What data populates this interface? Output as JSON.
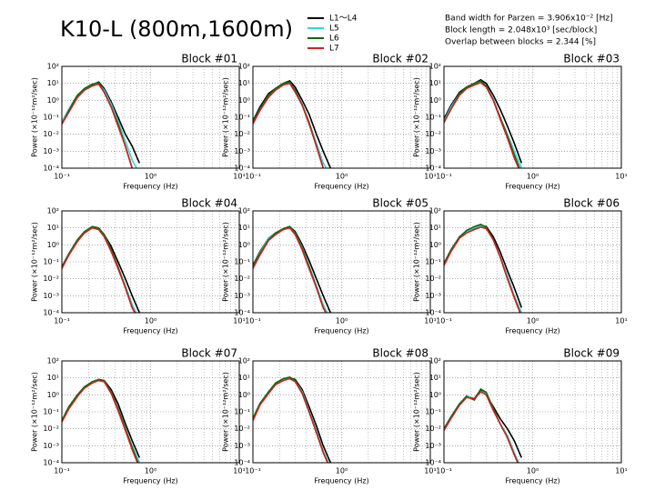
{
  "title": "K10-L (800m,1600m)",
  "notes": [
    "Band width for Parzen = 3.906x10⁻² [Hz]",
    "Block length = 2.048x10³ [sec/block]",
    "Overlap between blocks = 2.344 [%]"
  ],
  "legend": [
    {
      "name": "L1～L4",
      "color": "#000000"
    },
    {
      "name": "L5",
      "color": "#33d6d6"
    },
    {
      "name": "L6",
      "color": "#0a6b0a"
    },
    {
      "name": "L7",
      "color": "#cc2222"
    }
  ],
  "axes": {
    "xlabel": "Frequency (Hz)",
    "ylabel": "Power (×10⁻¹²m²/sec)",
    "xscale": "log",
    "yscale": "log",
    "grid": true,
    "xlim": [
      0.1,
      10
    ],
    "ylim": [
      0.0001,
      100
    ],
    "xticks": [
      {
        "value": 0.1,
        "label": "10⁻¹"
      },
      {
        "value": 1,
        "label": "10⁰"
      },
      {
        "value": 10,
        "label": "10¹"
      }
    ],
    "yticks": [
      {
        "value": 0.0001,
        "label": "10⁻⁴"
      },
      {
        "value": 0.001,
        "label": "10⁻³"
      },
      {
        "value": 0.01,
        "label": "10⁻²"
      },
      {
        "value": 0.1,
        "label": "10⁻¹"
      },
      {
        "value": 1,
        "label": "10⁰"
      },
      {
        "value": 10,
        "label": "10¹"
      },
      {
        "value": 100,
        "label": "10²"
      }
    ]
  },
  "chart_data": [
    {
      "type": "line",
      "title": "Block #01",
      "x": [
        0.1,
        0.12,
        0.15,
        0.18,
        0.22,
        0.26,
        0.3,
        0.36,
        0.43,
        0.52,
        0.62,
        0.75
      ],
      "series": [
        {
          "values": [
            0.05,
            0.3,
            2,
            4,
            8,
            12,
            5,
            0.8,
            0.1,
            0.01,
            0.002,
            0.0002
          ]
        },
        {
          "values": [
            0.05,
            0.3,
            2,
            4,
            9,
            10,
            4,
            0.6,
            0.06,
            0.004,
            0.0003,
            5e-05
          ]
        },
        {
          "values": [
            0.04,
            0.25,
            2,
            5,
            9,
            11,
            3,
            0.4,
            0.04,
            0.002,
            0.0001,
            3e-05
          ]
        },
        {
          "values": [
            0.04,
            0.2,
            1.5,
            4,
            7,
            9,
            3,
            0.4,
            0.03,
            0.002,
            0.0001,
            3e-05
          ]
        }
      ]
    },
    {
      "type": "line",
      "title": "Block #02",
      "x": [
        0.1,
        0.12,
        0.15,
        0.18,
        0.22,
        0.26,
        0.3,
        0.36,
        0.43,
        0.52,
        0.62,
        0.75
      ],
      "series": [
        {
          "values": [
            0.06,
            0.4,
            2.5,
            5,
            10,
            14,
            6,
            1,
            0.15,
            0.01,
            0.001,
            0.0001
          ]
        },
        {
          "values": [
            0.05,
            0.3,
            2,
            4,
            9,
            11,
            4,
            0.6,
            0.05,
            0.003,
            0.0002,
            4e-05
          ]
        },
        {
          "values": [
            0.05,
            0.3,
            2,
            5,
            10,
            12,
            4,
            0.5,
            0.05,
            0.002,
            0.0001,
            3e-05
          ]
        },
        {
          "values": [
            0.04,
            0.25,
            1.5,
            4,
            8,
            10,
            3,
            0.5,
            0.04,
            0.002,
            0.0001,
            3e-05
          ]
        }
      ]
    },
    {
      "type": "line",
      "title": "Block #03",
      "x": [
        0.1,
        0.12,
        0.15,
        0.18,
        0.22,
        0.26,
        0.3,
        0.36,
        0.43,
        0.52,
        0.62,
        0.75
      ],
      "series": [
        {
          "values": [
            0.08,
            0.5,
            3,
            6,
            10,
            16,
            10,
            2,
            0.3,
            0.03,
            0.003,
            0.0002
          ]
        },
        {
          "values": [
            0.06,
            0.4,
            2.5,
            5,
            9,
            13,
            7,
            1.2,
            0.1,
            0.01,
            0.001,
            0.0001
          ]
        },
        {
          "values": [
            0.05,
            0.3,
            2.5,
            6,
            10,
            14,
            7,
            1,
            0.1,
            0.008,
            0.0006,
            5e-05
          ]
        },
        {
          "values": [
            0.05,
            0.3,
            2,
            5,
            8,
            11,
            6,
            1,
            0.08,
            0.006,
            0.0004,
            4e-05
          ]
        }
      ]
    },
    {
      "type": "line",
      "title": "Block #04",
      "x": [
        0.1,
        0.12,
        0.15,
        0.18,
        0.22,
        0.26,
        0.3,
        0.36,
        0.43,
        0.52,
        0.62,
        0.75
      ],
      "series": [
        {
          "values": [
            0.05,
            0.3,
            2,
            6,
            11,
            9,
            4,
            0.8,
            0.1,
            0.01,
            0.001,
            0.0001
          ]
        },
        {
          "values": [
            0.05,
            0.3,
            2,
            6,
            12,
            10,
            4,
            0.5,
            0.05,
            0.004,
            0.0003,
            4e-05
          ]
        },
        {
          "values": [
            0.05,
            0.3,
            2,
            6,
            12,
            10,
            4,
            0.5,
            0.05,
            0.003,
            0.0002,
            3e-05
          ]
        },
        {
          "values": [
            0.04,
            0.25,
            1.6,
            5,
            10,
            8,
            3,
            0.4,
            0.04,
            0.003,
            0.0002,
            3e-05
          ]
        }
      ]
    },
    {
      "type": "line",
      "title": "Block #05",
      "x": [
        0.1,
        0.12,
        0.15,
        0.18,
        0.22,
        0.26,
        0.3,
        0.36,
        0.43,
        0.52,
        0.62,
        0.75
      ],
      "series": [
        {
          "values": [
            0.06,
            0.4,
            2.5,
            5,
            8,
            12,
            6,
            1,
            0.12,
            0.01,
            0.001,
            0.0001
          ]
        },
        {
          "values": [
            0.05,
            0.35,
            2.5,
            5,
            9,
            12,
            5,
            0.7,
            0.06,
            0.004,
            0.0003,
            4e-05
          ]
        },
        {
          "values": [
            0.05,
            0.3,
            2,
            5,
            9,
            12,
            5,
            0.6,
            0.05,
            0.003,
            0.0002,
            3e-05
          ]
        },
        {
          "values": [
            0.04,
            0.25,
            1.8,
            4,
            8,
            10,
            4,
            0.5,
            0.04,
            0.003,
            0.0002,
            3e-05
          ]
        }
      ]
    },
    {
      "type": "line",
      "title": "Block #06",
      "x": [
        0.1,
        0.12,
        0.15,
        0.18,
        0.22,
        0.26,
        0.3,
        0.36,
        0.43,
        0.52,
        0.62,
        0.75
      ],
      "series": [
        {
          "values": [
            0.08,
            0.5,
            3,
            6,
            9,
            14,
            12,
            3,
            0.4,
            0.03,
            0.003,
            0.0002
          ]
        },
        {
          "values": [
            0.07,
            0.45,
            3,
            6,
            10,
            13,
            10,
            2,
            0.2,
            0.015,
            0.001,
            0.0001
          ]
        },
        {
          "values": [
            0.07,
            0.45,
            3,
            7,
            12,
            16,
            11,
            2,
            0.2,
            0.01,
            0.0008,
            6e-05
          ]
        },
        {
          "values": [
            0.06,
            0.4,
            2.5,
            5,
            8,
            11,
            9,
            2,
            0.2,
            0.01,
            0.0008,
            6e-05
          ]
        }
      ]
    },
    {
      "type": "line",
      "title": "Block #07",
      "x": [
        0.1,
        0.12,
        0.15,
        0.18,
        0.22,
        0.26,
        0.3,
        0.36,
        0.43,
        0.52,
        0.62,
        0.75
      ],
      "series": [
        {
          "values": [
            0.03,
            0.2,
            1,
            3,
            5,
            8,
            7,
            2,
            0.3,
            0.02,
            0.002,
            0.0002
          ]
        },
        {
          "values": [
            0.03,
            0.2,
            1,
            3,
            5,
            7,
            6,
            1.5,
            0.15,
            0.01,
            0.001,
            0.0001
          ]
        },
        {
          "values": [
            0.03,
            0.2,
            1,
            3,
            6,
            8,
            7,
            1.5,
            0.15,
            0.01,
            0.0008,
            6e-05
          ]
        },
        {
          "values": [
            0.025,
            0.15,
            0.8,
            2.5,
            5,
            7,
            6,
            1.2,
            0.12,
            0.008,
            0.0006,
            5e-05
          ]
        }
      ]
    },
    {
      "type": "line",
      "title": "Block #08",
      "x": [
        0.1,
        0.12,
        0.15,
        0.18,
        0.22,
        0.26,
        0.3,
        0.36,
        0.43,
        0.52,
        0.62,
        0.75
      ],
      "series": [
        {
          "values": [
            0.04,
            0.3,
            1.5,
            4,
            7,
            10,
            8,
            2,
            0.2,
            0.015,
            0.001,
            0.0001
          ]
        },
        {
          "values": [
            0.04,
            0.3,
            1.5,
            4,
            8,
            10,
            7,
            1.5,
            0.12,
            0.008,
            0.0005,
            5e-05
          ]
        },
        {
          "values": [
            0.04,
            0.3,
            1.5,
            5,
            9,
            11,
            7,
            1.2,
            0.1,
            0.006,
            0.0004,
            4e-05
          ]
        },
        {
          "values": [
            0.03,
            0.25,
            1.2,
            4,
            7,
            9,
            6,
            1.2,
            0.1,
            0.006,
            0.0004,
            4e-05
          ]
        }
      ]
    },
    {
      "type": "line",
      "title": "Block #09",
      "x": [
        0.1,
        0.12,
        0.15,
        0.18,
        0.22,
        0.26,
        0.3,
        0.36,
        0.43,
        0.52,
        0.62,
        0.75
      ],
      "series": [
        {
          "values": [
            0.01,
            0.05,
            0.3,
            0.8,
            0.6,
            2,
            1,
            0.2,
            0.04,
            0.01,
            0.002,
            0.0002
          ]
        },
        {
          "values": [
            0.01,
            0.05,
            0.3,
            0.9,
            0.5,
            1.6,
            1.2,
            0.15,
            0.02,
            0.004,
            0.0004,
            4e-05
          ]
        },
        {
          "values": [
            0.01,
            0.05,
            0.3,
            0.8,
            0.5,
            2.2,
            1.4,
            0.15,
            0.02,
            0.003,
            0.0003,
            3e-05
          ]
        },
        {
          "values": [
            0.008,
            0.04,
            0.25,
            0.7,
            0.6,
            1.5,
            1,
            0.12,
            0.02,
            0.003,
            0.0003,
            3e-05
          ]
        }
      ]
    }
  ]
}
